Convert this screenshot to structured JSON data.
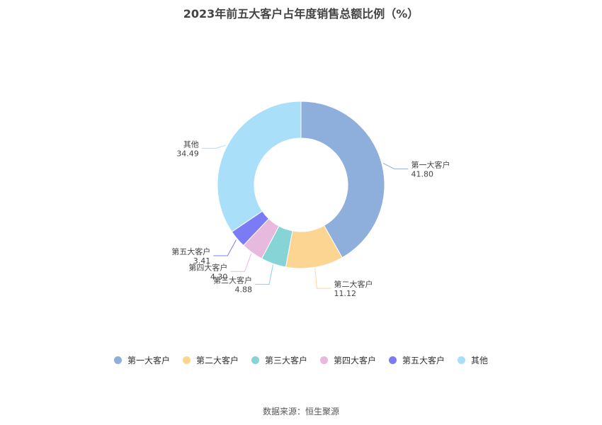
{
  "chart_data": {
    "type": "pie",
    "title": "2023年前五大客户占年度销售总额比例（%）",
    "categories": [
      "第一大客户",
      "第二大客户",
      "第三大客户",
      "第四大客户",
      "第五大客户",
      "其他"
    ],
    "values": [
      41.8,
      11.12,
      4.88,
      4.3,
      3.41,
      34.49
    ],
    "value_labels": [
      "41.80",
      "11.12",
      "4.88",
      "4.30",
      "3.41",
      "34.49"
    ],
    "colors": [
      "#8eaedb",
      "#fdd593",
      "#86d4d6",
      "#e7b9de",
      "#7b7cf5",
      "#aadffa"
    ],
    "donut": true,
    "legend_position": "bottom"
  },
  "source": "数据来源：恒生聚源"
}
